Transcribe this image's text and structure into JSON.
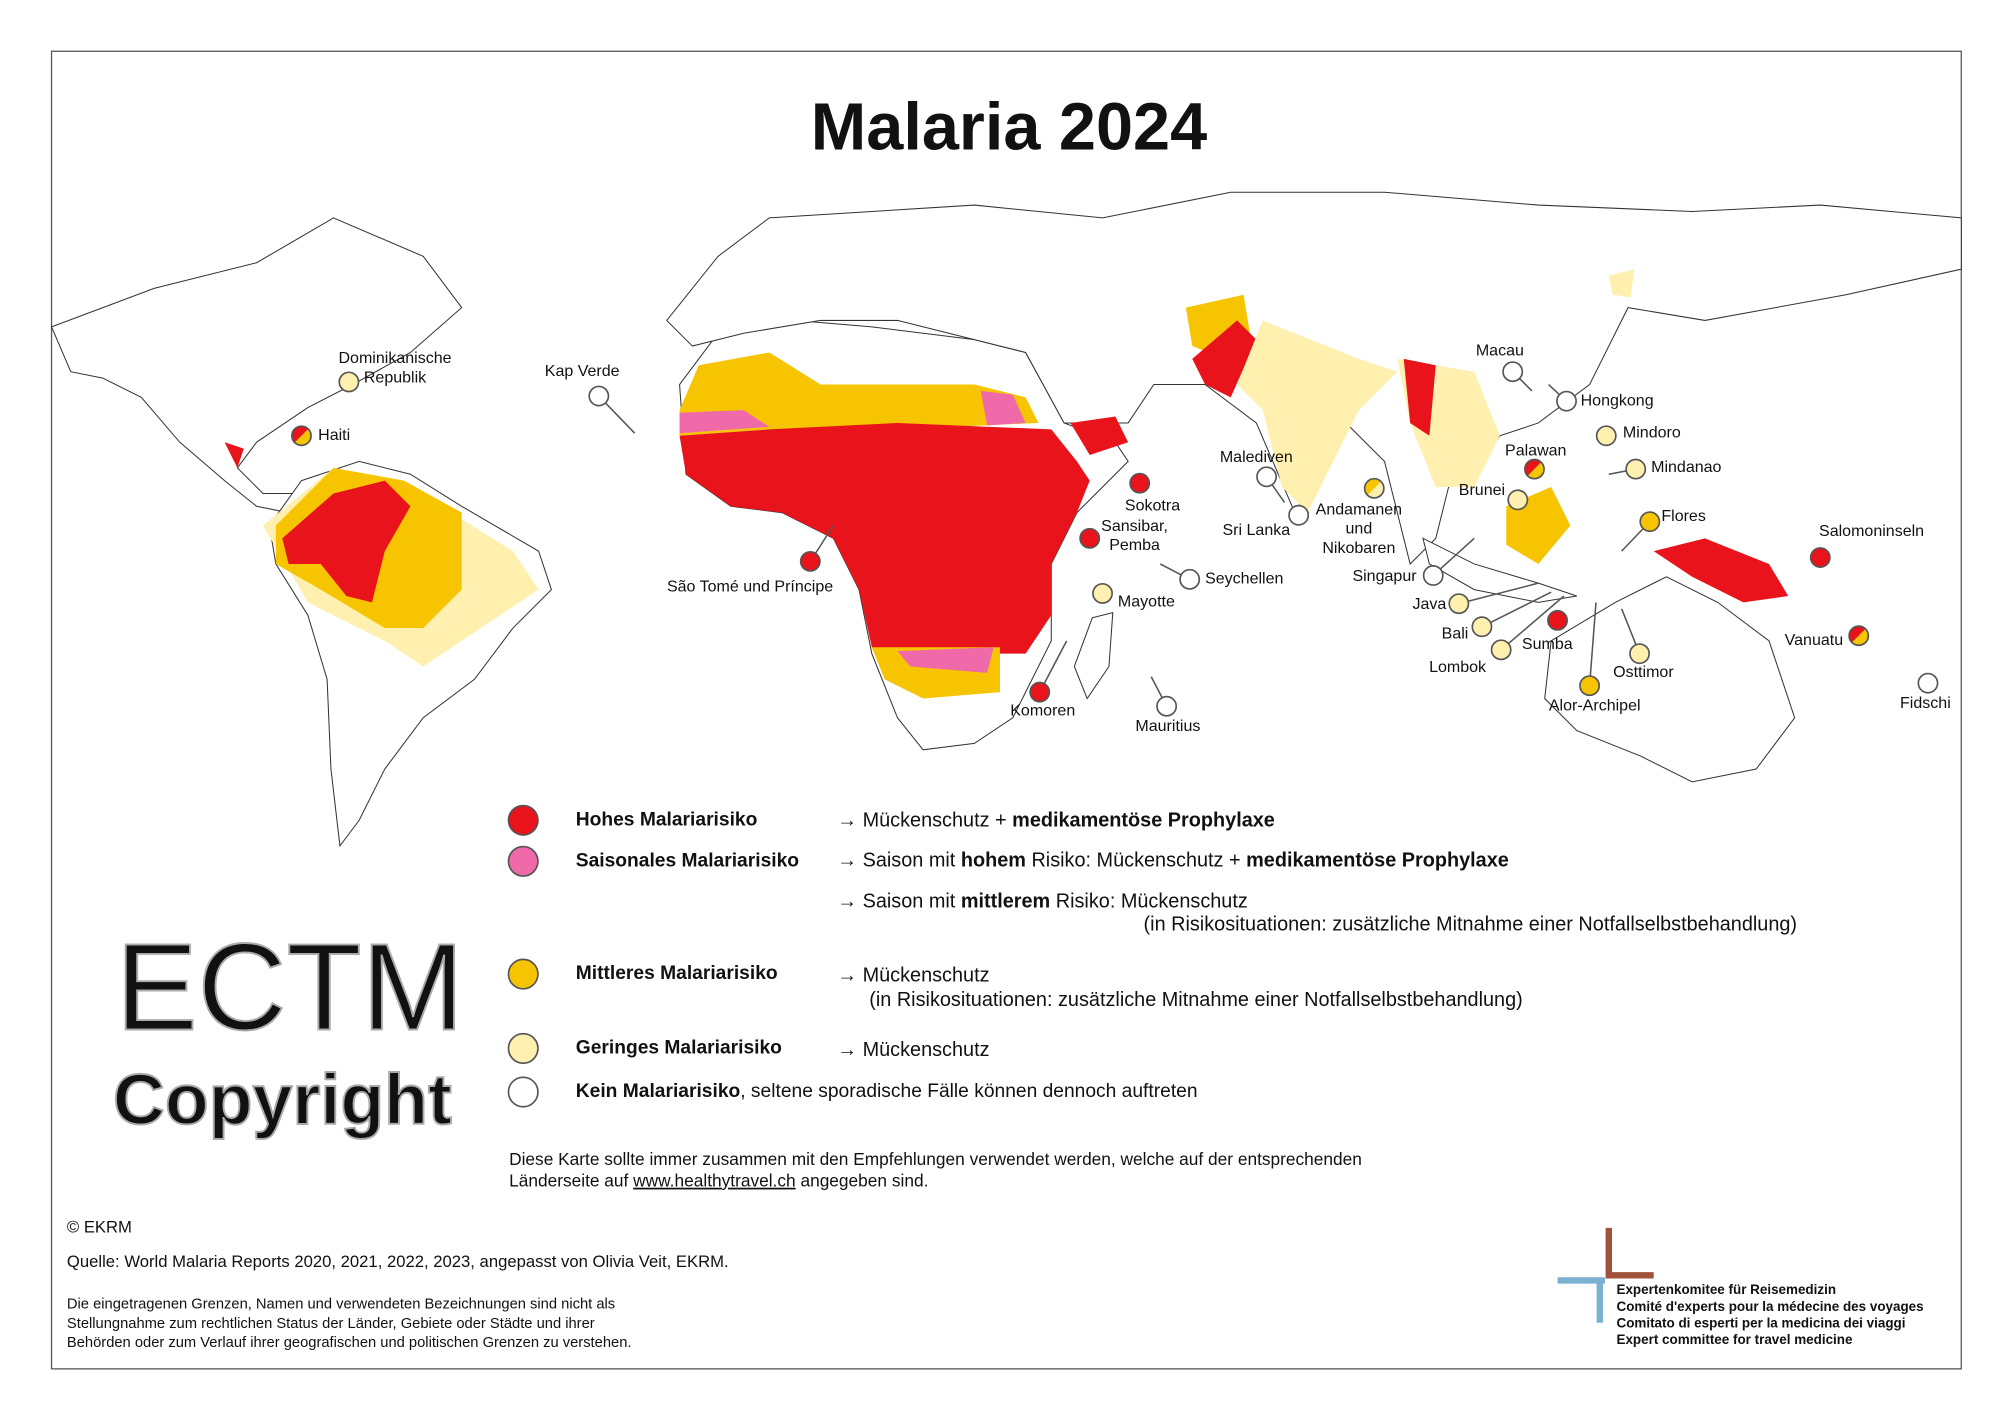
{
  "title": "Malaria 2024",
  "places": [
    {
      "label": [
        "Dominikanische",
        "Republik"
      ],
      "colors": [
        "#fff0b0"
      ]
    },
    {
      "label": [
        "Haiti"
      ],
      "colors": [
        "#e8131b",
        "#f6c400"
      ]
    },
    {
      "label": [
        "Kap Verde"
      ],
      "colors": [
        "#ffffff"
      ]
    },
    {
      "label": [
        "São Tomé und Príncipe"
      ],
      "colors": [
        "#e8131b"
      ]
    },
    {
      "label": [
        "Sokotra"
      ],
      "colors": [
        "#e8131b"
      ]
    },
    {
      "label": [
        "Sansibar,",
        "Pemba"
      ],
      "colors": [
        "#e8131b"
      ]
    },
    {
      "label": [
        "Malediven"
      ],
      "colors": [
        "#ffffff"
      ]
    },
    {
      "label": [
        "Sri Lanka"
      ],
      "colors": [
        "#ffffff"
      ]
    },
    {
      "label": [
        "Seychellen"
      ],
      "colors": [
        "#ffffff"
      ]
    },
    {
      "label": [
        "Mayotte"
      ],
      "colors": [
        "#fff0b0"
      ]
    },
    {
      "label": [
        "Komoren"
      ],
      "colors": [
        "#e8131b"
      ]
    },
    {
      "label": [
        "Mauritius"
      ],
      "colors": [
        "#ffffff"
      ]
    },
    {
      "label": [
        "Andamanen",
        "und",
        "Nikobaren"
      ],
      "colors": [
        "#f6c400",
        "#fff0b0"
      ]
    },
    {
      "label": [
        "Macau"
      ],
      "colors": [
        "#ffffff"
      ]
    },
    {
      "label": [
        "Hongkong"
      ],
      "colors": [
        "#ffffff"
      ]
    },
    {
      "label": [
        "Mindoro"
      ],
      "colors": [
        "#fff0b0"
      ]
    },
    {
      "label": [
        "Palawan"
      ],
      "colors": [
        "#e8131b",
        "#f6c400"
      ]
    },
    {
      "label": [
        "Mindanao"
      ],
      "colors": [
        "#fff0b0"
      ]
    },
    {
      "label": [
        "Brunei"
      ],
      "colors": [
        "#fff0b0"
      ]
    },
    {
      "label": [
        "Flores"
      ],
      "colors": [
        "#f6c400"
      ]
    },
    {
      "label": [
        "Singapur"
      ],
      "colors": [
        "#ffffff"
      ]
    },
    {
      "label": [
        "Java"
      ],
      "colors": [
        "#fff0b0"
      ]
    },
    {
      "label": [
        "Bali"
      ],
      "colors": [
        "#fff0b0"
      ]
    },
    {
      "label": [
        "Lombok"
      ],
      "colors": [
        "#fff0b0"
      ]
    },
    {
      "label": [
        "Sumba"
      ],
      "colors": [
        "#e8131b"
      ]
    },
    {
      "label": [
        "Osttimor"
      ],
      "colors": [
        "#fff0b0"
      ]
    },
    {
      "label": [
        "Alor-Archipel"
      ],
      "colors": [
        "#f6c400"
      ]
    },
    {
      "label": [
        "Salomoninseln"
      ],
      "colors": [
        "#e8131b"
      ]
    },
    {
      "label": [
        "Vanuatu"
      ],
      "colors": [
        "#e8131b",
        "#f6c400"
      ]
    },
    {
      "label": [
        "Fidschi"
      ],
      "colors": [
        "#ffffff"
      ]
    }
  ],
  "legend": [
    {
      "name": "Hohes Malariarisiko",
      "color": "#e8131b",
      "lines": [
        [
          {
            "text": "→ Mückenschutz + "
          },
          {
            "text": "medikamentöse Prophylaxe",
            "bold": true
          }
        ]
      ]
    },
    {
      "name": "Saisonales Malariarisiko",
      "color": "#f06aa9",
      "lines": [
        [
          {
            "text": "→ Saison mit "
          },
          {
            "text": "hohem",
            "bold": true
          },
          {
            "text": " Risiko: Mückenschutz + "
          },
          {
            "text": "medikamentöse Prophylaxe",
            "bold": true
          }
        ],
        [
          {
            "text": "→ Saison mit "
          },
          {
            "text": "mittlerem",
            "bold": true
          },
          {
            "text": " Risiko: Mückenschutz"
          }
        ],
        [
          {
            "text": "(in Risikosituationen: zusätzliche Mitnahme einer Notfallselbstbehandlung)"
          }
        ]
      ]
    },
    {
      "name": "Mittleres Malariarisiko",
      "color": "#f6c400",
      "lines": [
        [
          {
            "text": "→ Mückenschutz"
          }
        ],
        [
          {
            "text": "(in Risikosituationen: zusätzliche Mitnahme einer Notfallselbstbehandlung)"
          }
        ]
      ]
    },
    {
      "name": "Geringes Malariarisiko",
      "color": "#fff0b0",
      "lines": [
        [
          {
            "text": "→ Mückenschutz"
          }
        ]
      ]
    },
    {
      "name": "Kein Malariarisiko",
      "color": "#ffffff",
      "lines": [
        [
          {
            "text": ", seltene sporadische Fälle können dennoch auftreten"
          }
        ]
      ]
    }
  ],
  "note": [
    [
      {
        "text": "Diese Karte sollte immer zusammen mit den Empfehlungen verwendet werden, welche auf der entsprechenden"
      }
    ],
    [
      {
        "text": "Länderseite auf "
      },
      {
        "text": "www.healthytravel.ch",
        "link": true
      },
      {
        "text": " angegeben sind."
      }
    ]
  ],
  "copyright": "© EKRM",
  "source": "Quelle: World Malaria Reports 2020, 2021, 2022, 2023, angepasst von Olivia Veit, EKRM.",
  "disclaimer": [
    "Die eingetragenen Grenzen, Namen und verwendeten Bezeichnungen sind nicht als",
    "Stellungnahme zum rechtlichen Status der Länder, Gebiete oder Städte und ihrer",
    "Behörden oder zum Verlauf ihrer geografischen und politischen Grenzen zu verstehen."
  ],
  "logo": [
    "Expertenkomitee für Reisemedizin",
    "Comité d'experts pour la médecine des voyages",
    "Comitato di esperti per la medicina dei viaggi",
    "Expert committee for travel medicine"
  ],
  "watermark": [
    "ECTM",
    "Copyright"
  ]
}
